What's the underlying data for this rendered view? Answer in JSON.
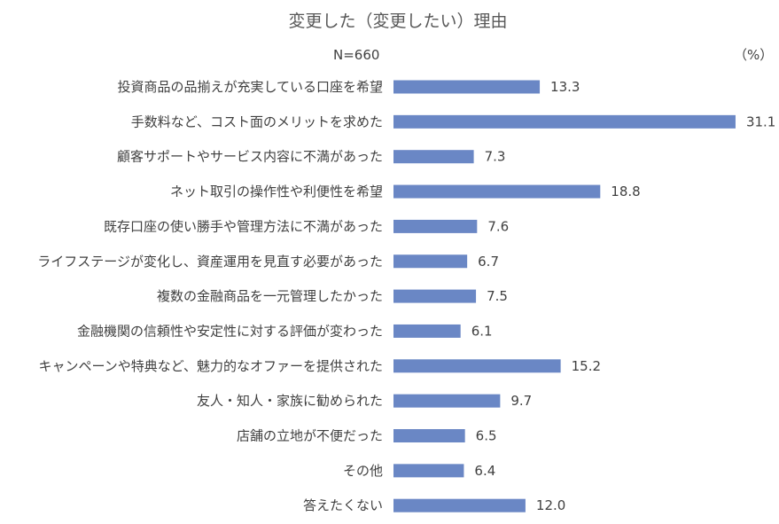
{
  "chart_data": {
    "type": "bar",
    "orientation": "horizontal",
    "title": "変更した（変更したい）理由",
    "sample_note": "N=660",
    "unit_label": "（%）",
    "bar_color": "#6a87c5",
    "xlim": [
      0,
      33
    ],
    "categories": [
      "投資商品の品揃えが充実している口座を希望",
      "手数料など、コスト面のメリットを求めた",
      "顧客サポートやサービス内容に不満があった",
      "ネット取引の操作性や利便性を希望",
      "既存口座の使い勝手や管理方法に不満があった",
      "ライフステージが変化し、資産運用を見直す必要があった",
      "複数の金融商品を一元管理したかった",
      "金融機関の信頼性や安定性に対する評価が変わった",
      "キャンペーンや特典など、魅力的なオファーを提供された",
      "友人・知人・家族に勧められた",
      "店舗の立地が不便だった",
      "その他",
      "答えたくない"
    ],
    "values": [
      13.3,
      31.1,
      7.3,
      18.8,
      7.6,
      6.7,
      7.5,
      6.1,
      15.2,
      9.7,
      6.5,
      6.4,
      12.0
    ],
    "value_labels": [
      "13.3",
      "31.1",
      "7.3",
      "18.8",
      "7.6",
      "6.7",
      "7.5",
      "6.1",
      "15.2",
      "9.7",
      "6.5",
      "6.4",
      "12.0"
    ]
  }
}
